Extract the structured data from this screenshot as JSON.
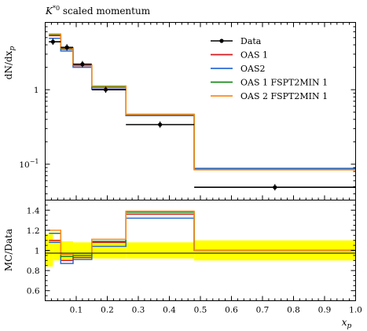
{
  "chart_data": [
    {
      "type": "line",
      "panel": "main",
      "title": "K*0 scaled momentum",
      "title_base": "K",
      "title_sup": "*0",
      "title_rest": " scaled momentum",
      "ylabel": "dN/dx_p",
      "ylabel_text": "dN/dx",
      "ylabel_sub": "p",
      "yscale": "log",
      "ylim": [
        0.033,
        8.0
      ],
      "xlim": [
        0.0,
        1.0
      ],
      "yticks": [
        {
          "value": 1,
          "label": "1"
        },
        {
          "value": 0.1,
          "label": "10",
          "sup": "−1"
        }
      ],
      "bin_edges": [
        0.012,
        0.05,
        0.09,
        0.15,
        0.26,
        0.48,
        1.0
      ],
      "data": {
        "name": "Data",
        "x": [
          0.025,
          0.07,
          0.12,
          0.195,
          0.37,
          0.74
        ],
        "y": [
          4.4,
          3.7,
          2.2,
          1.0,
          0.34,
          0.049
        ],
        "xerr_low": [
          0.013,
          0.02,
          0.03,
          0.045,
          0.11,
          0.26
        ],
        "xerr_high": [
          0.025,
          0.02,
          0.03,
          0.065,
          0.11,
          0.26
        ]
      },
      "series": [
        {
          "name": "OAS 1",
          "color": "#d7191c",
          "values": [
            5.3,
            3.5,
            2.1,
            1.08,
            0.46,
            0.086
          ]
        },
        {
          "name": "OAS2",
          "color": "#2b6bd6",
          "values": [
            4.9,
            3.3,
            2.0,
            1.02,
            0.45,
            0.088
          ]
        },
        {
          "name": "OAS 1 FSPT2MIN 1",
          "color": "#1a8a1a",
          "values": [
            5.4,
            3.6,
            2.12,
            1.1,
            0.465,
            0.085
          ]
        },
        {
          "name": "OAS 2 FSPT2MIN 1",
          "color": "#ff8a1a",
          "values": [
            5.6,
            3.65,
            2.15,
            1.12,
            0.47,
            0.084
          ]
        }
      ],
      "legend_position": "top-right"
    },
    {
      "type": "line",
      "panel": "ratio",
      "ylabel": "MC/Data",
      "xlabel": "x_p",
      "xlabel_text": "x",
      "xlabel_sub": "p",
      "ylim": [
        0.5,
        1.5
      ],
      "xlim": [
        0.0,
        1.0
      ],
      "xticks": [
        "0.1",
        "0.2",
        "0.3",
        "0.4",
        "0.5",
        "0.6",
        "0.7",
        "0.8",
        "0.9",
        "1.0"
      ],
      "xtick_values": [
        0.1,
        0.2,
        0.3,
        0.4,
        0.5,
        0.6,
        0.7,
        0.8,
        0.9,
        1.0
      ],
      "yticks": [
        "0.6",
        "0.8",
        "1",
        "1.2",
        "1.4"
      ],
      "ytick_values": [
        0.6,
        0.8,
        1.0,
        1.2,
        1.4
      ],
      "band_color": "#ffff00",
      "band_edges": [
        0.0,
        0.012,
        0.025,
        0.05,
        0.09,
        0.15,
        0.26,
        0.48,
        1.0
      ],
      "band_low": [
        0.84,
        0.84,
        0.9,
        0.91,
        0.92,
        0.92,
        0.92,
        0.9
      ],
      "band_high": [
        1.16,
        1.16,
        1.1,
        1.09,
        1.08,
        1.08,
        1.08,
        1.1
      ],
      "series": [
        {
          "name": "OAS 1",
          "color": "#d7191c",
          "values": [
            1.1,
            0.9,
            0.93,
            1.08,
            1.36,
            1.0
          ]
        },
        {
          "name": "OAS2",
          "color": "#2b6bd6",
          "values": [
            1.08,
            0.87,
            0.91,
            1.04,
            1.32,
            1.0
          ]
        },
        {
          "name": "OAS 1 FSPT2MIN 1",
          "color": "#1a8a1a",
          "values": [
            1.17,
            0.94,
            0.95,
            1.09,
            1.38,
            1.0
          ]
        },
        {
          "name": "OAS 2 FSPT2MIN 1",
          "color": "#ff8a1a",
          "values": [
            1.2,
            0.96,
            0.97,
            1.11,
            1.39,
            1.0
          ]
        }
      ]
    }
  ]
}
